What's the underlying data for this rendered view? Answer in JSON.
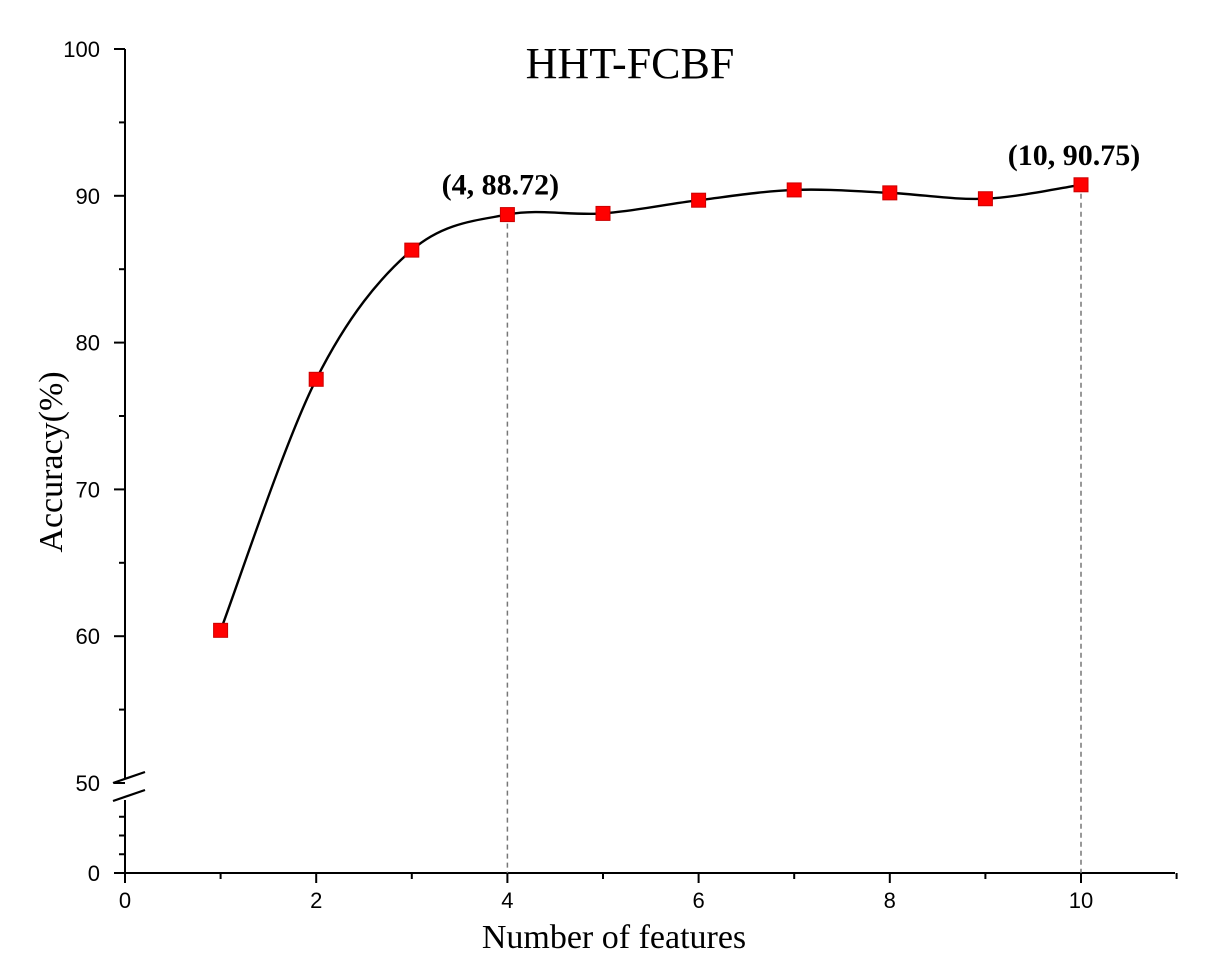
{
  "chart_data": {
    "type": "line",
    "title": "HHT-FCBF",
    "xlabel": "Number of features",
    "ylabel": "Accuracy(%)",
    "xlim": [
      0,
      11
    ],
    "ylim": [
      50,
      100
    ],
    "y_axis_break": {
      "lower_segment": [
        0,
        50
      ],
      "upper_segment": [
        50,
        100
      ]
    },
    "x_ticks": [
      0,
      2,
      4,
      6,
      8,
      10
    ],
    "y_ticks_lower": [
      0
    ],
    "y_ticks_upper": [
      50,
      60,
      70,
      80,
      90,
      100
    ],
    "grid": false,
    "series": [
      {
        "x": [
          1,
          2,
          3,
          4,
          5,
          6,
          7,
          8,
          9,
          10
        ],
        "values": [
          60.4,
          77.5,
          86.3,
          88.72,
          88.8,
          89.7,
          90.4,
          90.2,
          89.8,
          90.75
        ],
        "marker": "square",
        "marker_color": "#ff0000",
        "line_color": "#000000"
      }
    ],
    "annotations": [
      {
        "x": 4,
        "y": 88.72,
        "text": "(4, 88.72)"
      },
      {
        "x": 10,
        "y": 90.75,
        "text": "(10, 90.75)"
      }
    ]
  }
}
